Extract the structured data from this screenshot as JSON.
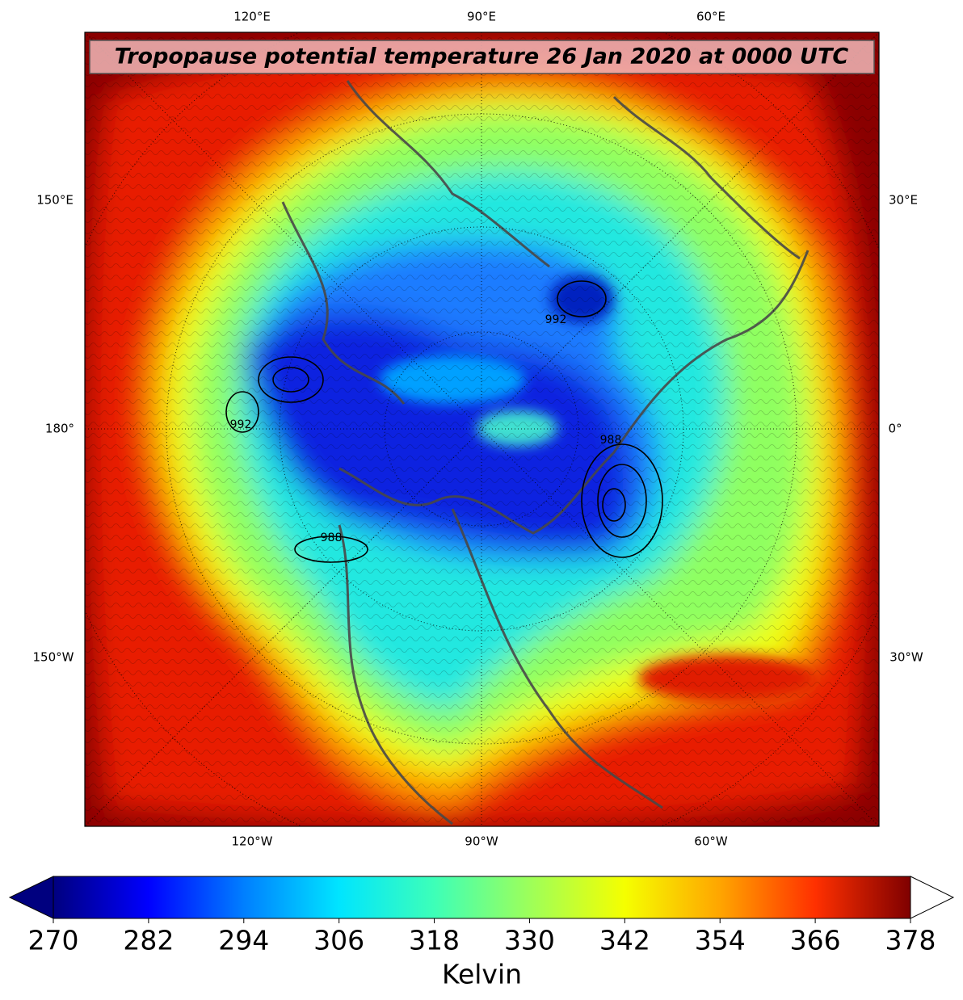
{
  "title": "Tropopause potential temperature 26 Jan 2020 at 0000 UTC",
  "map": {
    "labels": {
      "top": [
        "120°E",
        "90°E",
        "60°E"
      ],
      "bottom": [
        "120°W",
        "90°W",
        "60°W"
      ],
      "left": [
        "150°E",
        "180°",
        "150°W"
      ],
      "right": [
        "30°E",
        "0°",
        "30°W"
      ]
    },
    "contour_labels": [
      "992",
      "988",
      "992",
      "988"
    ]
  },
  "colorbar": {
    "label": "Kelvin",
    "lim": [
      270,
      378
    ],
    "ticks": [
      270,
      282,
      294,
      306,
      318,
      330,
      342,
      354,
      366,
      378
    ],
    "colors": [
      "#00007f",
      "#0000ff",
      "#007fff",
      "#00e5ff",
      "#3dffb8",
      "#9dff5a",
      "#f5ff00",
      "#ffa500",
      "#ff3000",
      "#7f0000"
    ],
    "extend": "both"
  }
}
